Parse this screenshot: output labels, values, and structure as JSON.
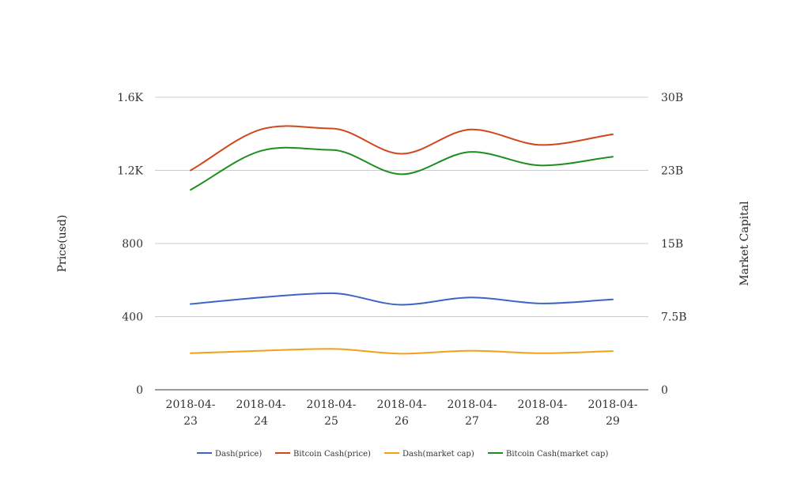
{
  "chart_data": {
    "type": "line",
    "categories": [
      "2018-04-23",
      "2018-04-24",
      "2018-04-25",
      "2018-04-26",
      "2018-04-27",
      "2018-04-28",
      "2018-04-29"
    ],
    "category_lines": [
      [
        "2018-04-",
        "23"
      ],
      [
        "2018-04-",
        "24"
      ],
      [
        "2018-04-",
        "25"
      ],
      [
        "2018-04-",
        "26"
      ],
      [
        "2018-04-",
        "27"
      ],
      [
        "2018-04-",
        "28"
      ],
      [
        "2018-04-",
        "29"
      ]
    ],
    "ylabel_left": "Price(usd)",
    "ylabel_right": "Market Capital",
    "left_axis": {
      "min": 0,
      "max": 1600,
      "ticks": [
        0,
        400,
        800,
        1200,
        1600
      ],
      "tick_labels": [
        "0",
        "400",
        "800",
        "1.2K",
        "1.6K"
      ]
    },
    "right_axis": {
      "min": 0,
      "max": 30000000000,
      "ticks": [
        0,
        7500000000,
        15000000000,
        22500000000,
        30000000000
      ],
      "tick_labels": [
        "0",
        "7.5B",
        "15B",
        "23B",
        "30B"
      ]
    },
    "grid": true,
    "legend_position": "bottom",
    "series": [
      {
        "name": "Dash(price)",
        "axis": "left",
        "color": "#3b65c4",
        "values": [
          469,
          505,
          528,
          465,
          505,
          472,
          494
        ]
      },
      {
        "name": "Bitcoin Cash(price)",
        "axis": "right",
        "color": "#d2461e",
        "values": [
          22500000000,
          26700000000,
          26800000000,
          24200000000,
          26700000000,
          25100000000,
          26200000000
        ]
      },
      {
        "name": "Dash(market cap)",
        "axis": "right",
        "color": "#f5a01a",
        "values": [
          3750000000,
          4000000000,
          4200000000,
          3700000000,
          4000000000,
          3750000000,
          3960000000
        ]
      },
      {
        "name": "Bitcoin Cash(market cap)",
        "axis": "right",
        "color": "#1e8f1e",
        "values": [
          20500000000,
          24500000000,
          24600000000,
          22100000000,
          24400000000,
          23000000000,
          23900000000
        ]
      }
    ]
  }
}
